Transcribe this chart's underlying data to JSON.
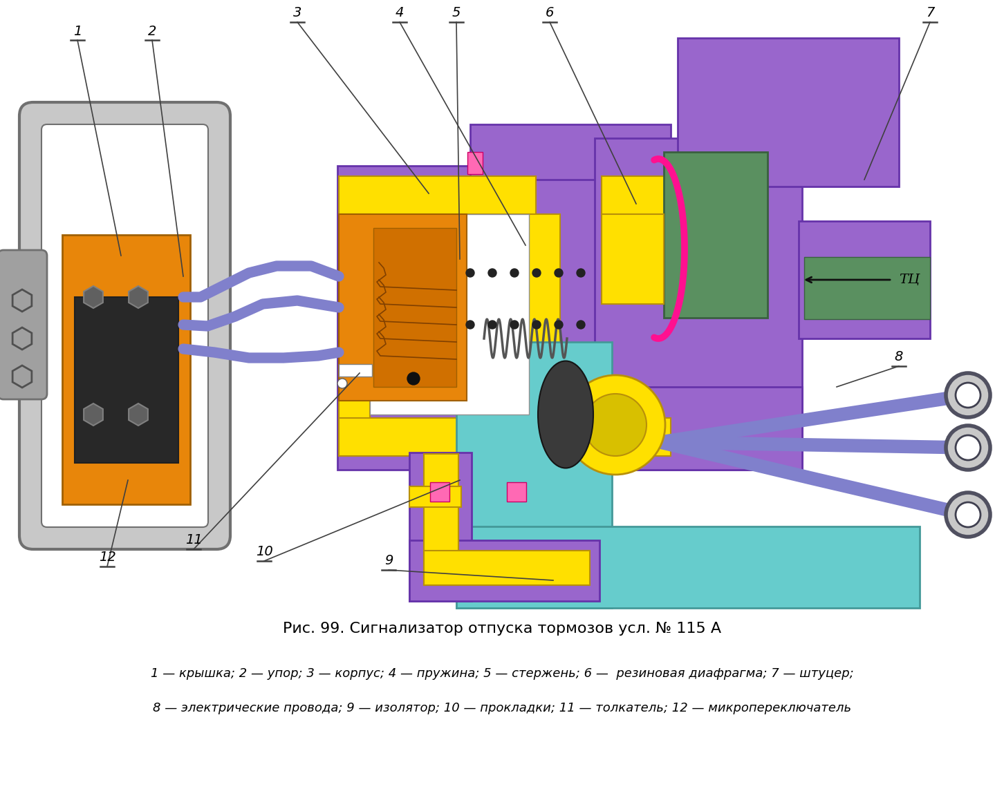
{
  "title": "Рис. 99. Сигнализатор отпуска тормозов усл. № 115 А",
  "caption_line1": "1 — крышка; 2 — упор; 3 — корпус; 4 — пружина; 5 — стержень; 6 —  резиновая диафрагма; 7 — штуцер;",
  "caption_line2": "8 — электрические провода; 9 — изолятор; 10 — прокладки; 11 — толкатель; 12 — микропереключатель",
  "bg_color": "#ffffff",
  "purple": "#9966CC",
  "purple_dark": "#6633AA",
  "yellow": "#FFE000",
  "yellow_dark": "#B8900A",
  "orange": "#E8860A",
  "orange_dark": "#A06000",
  "light_blue": "#66CCCC",
  "light_blue_dark": "#449999",
  "blue_wire": "#8080CC",
  "gray_light": "#C8C8C8",
  "gray_mid": "#A0A0A0",
  "gray_dark": "#707070",
  "green": "#5A9060",
  "green_dark": "#3A6040",
  "pink": "#FF69B4",
  "pink_dark": "#CC0066",
  "white": "#FFFFFF",
  "black": "#101010",
  "dark_body": "#303030"
}
